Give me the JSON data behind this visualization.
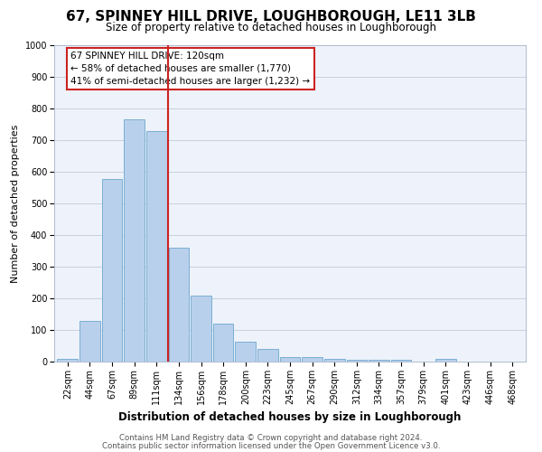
{
  "title": "67, SPINNEY HILL DRIVE, LOUGHBOROUGH, LE11 3LB",
  "subtitle": "Size of property relative to detached houses in Loughborough",
  "xlabel": "Distribution of detached houses by size in Loughborough",
  "ylabel": "Number of detached properties",
  "bar_labels": [
    "22sqm",
    "44sqm",
    "67sqm",
    "89sqm",
    "111sqm",
    "134sqm",
    "156sqm",
    "178sqm",
    "200sqm",
    "223sqm",
    "245sqm",
    "267sqm",
    "290sqm",
    "312sqm",
    "334sqm",
    "357sqm",
    "379sqm",
    "401sqm",
    "423sqm",
    "446sqm",
    "468sqm"
  ],
  "bar_values": [
    10,
    128,
    578,
    765,
    728,
    360,
    210,
    120,
    63,
    40,
    15,
    15,
    10,
    5,
    5,
    5,
    0,
    10,
    0,
    0,
    0
  ],
  "bar_color": "#b8d0eb",
  "bar_edge_color": "#7aafd4",
  "background_color": "#eef2fa",
  "grid_color": "#c8d0e0",
  "vline_x": 4.5,
  "vline_color": "#cc2222",
  "annotation_text": "67 SPINNEY HILL DRIVE: 120sqm\n← 58% of detached houses are smaller (1,770)\n41% of semi-detached houses are larger (1,232) →",
  "annotation_box_color": "#ffffff",
  "annotation_box_edge_color": "#cc2222",
  "footnote1": "Contains HM Land Registry data © Crown copyright and database right 2024.",
  "footnote2": "Contains public sector information licensed under the Open Government Licence v3.0.",
  "ylim": [
    0,
    1000
  ],
  "yticks": [
    0,
    100,
    200,
    300,
    400,
    500,
    600,
    700,
    800,
    900,
    1000
  ],
  "title_fontsize": 11,
  "subtitle_fontsize": 8.5,
  "axis_label_fontsize": 8,
  "tick_fontsize": 7,
  "annotation_fontsize": 7.5,
  "footnote_fontsize": 6.2
}
